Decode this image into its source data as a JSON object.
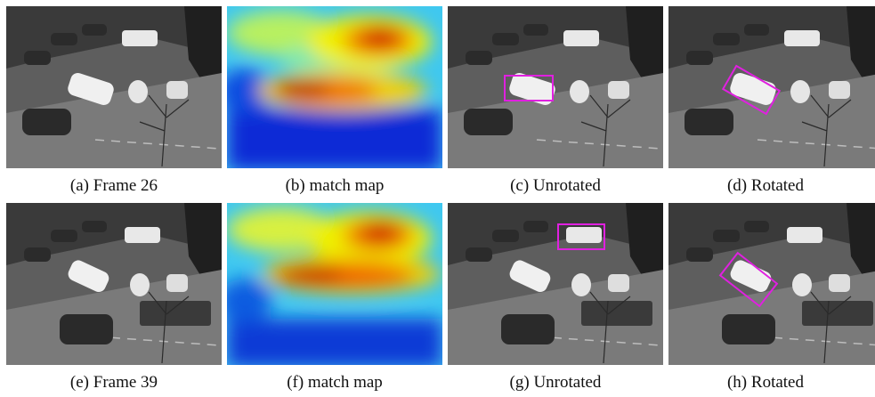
{
  "panels": [
    {
      "id": "a",
      "label": "(a)",
      "title": "Frame 26",
      "kind": "frame",
      "frame": 26,
      "box": "none"
    },
    {
      "id": "b",
      "label": "(b)",
      "title": "match map",
      "kind": "heatmap",
      "frame": 26
    },
    {
      "id": "c",
      "label": "(c)",
      "title": "Unrotated",
      "kind": "frame",
      "frame": 26,
      "box": "unrotated"
    },
    {
      "id": "d",
      "label": "(d)",
      "title": "Rotated",
      "kind": "frame",
      "frame": 26,
      "box": "rotated"
    },
    {
      "id": "e",
      "label": "(e)",
      "title": "Frame 39",
      "kind": "frame",
      "frame": 39,
      "box": "none"
    },
    {
      "id": "f",
      "label": "(f)",
      "title": "match map",
      "kind": "heatmap",
      "frame": 39
    },
    {
      "id": "g",
      "label": "(g)",
      "title": "Unrotated",
      "kind": "frame",
      "frame": 39,
      "box": "unrotated"
    },
    {
      "id": "h",
      "label": "(h)",
      "title": "Rotated",
      "kind": "frame",
      "frame": 39,
      "box": "rotated"
    }
  ],
  "colors": {
    "box_stroke": "#e020e0",
    "heat_low": "#0a2bd6",
    "heat_mid": "#3fc8f0",
    "heat_yellow": "#f0f000",
    "heat_high": "#e01a00"
  }
}
